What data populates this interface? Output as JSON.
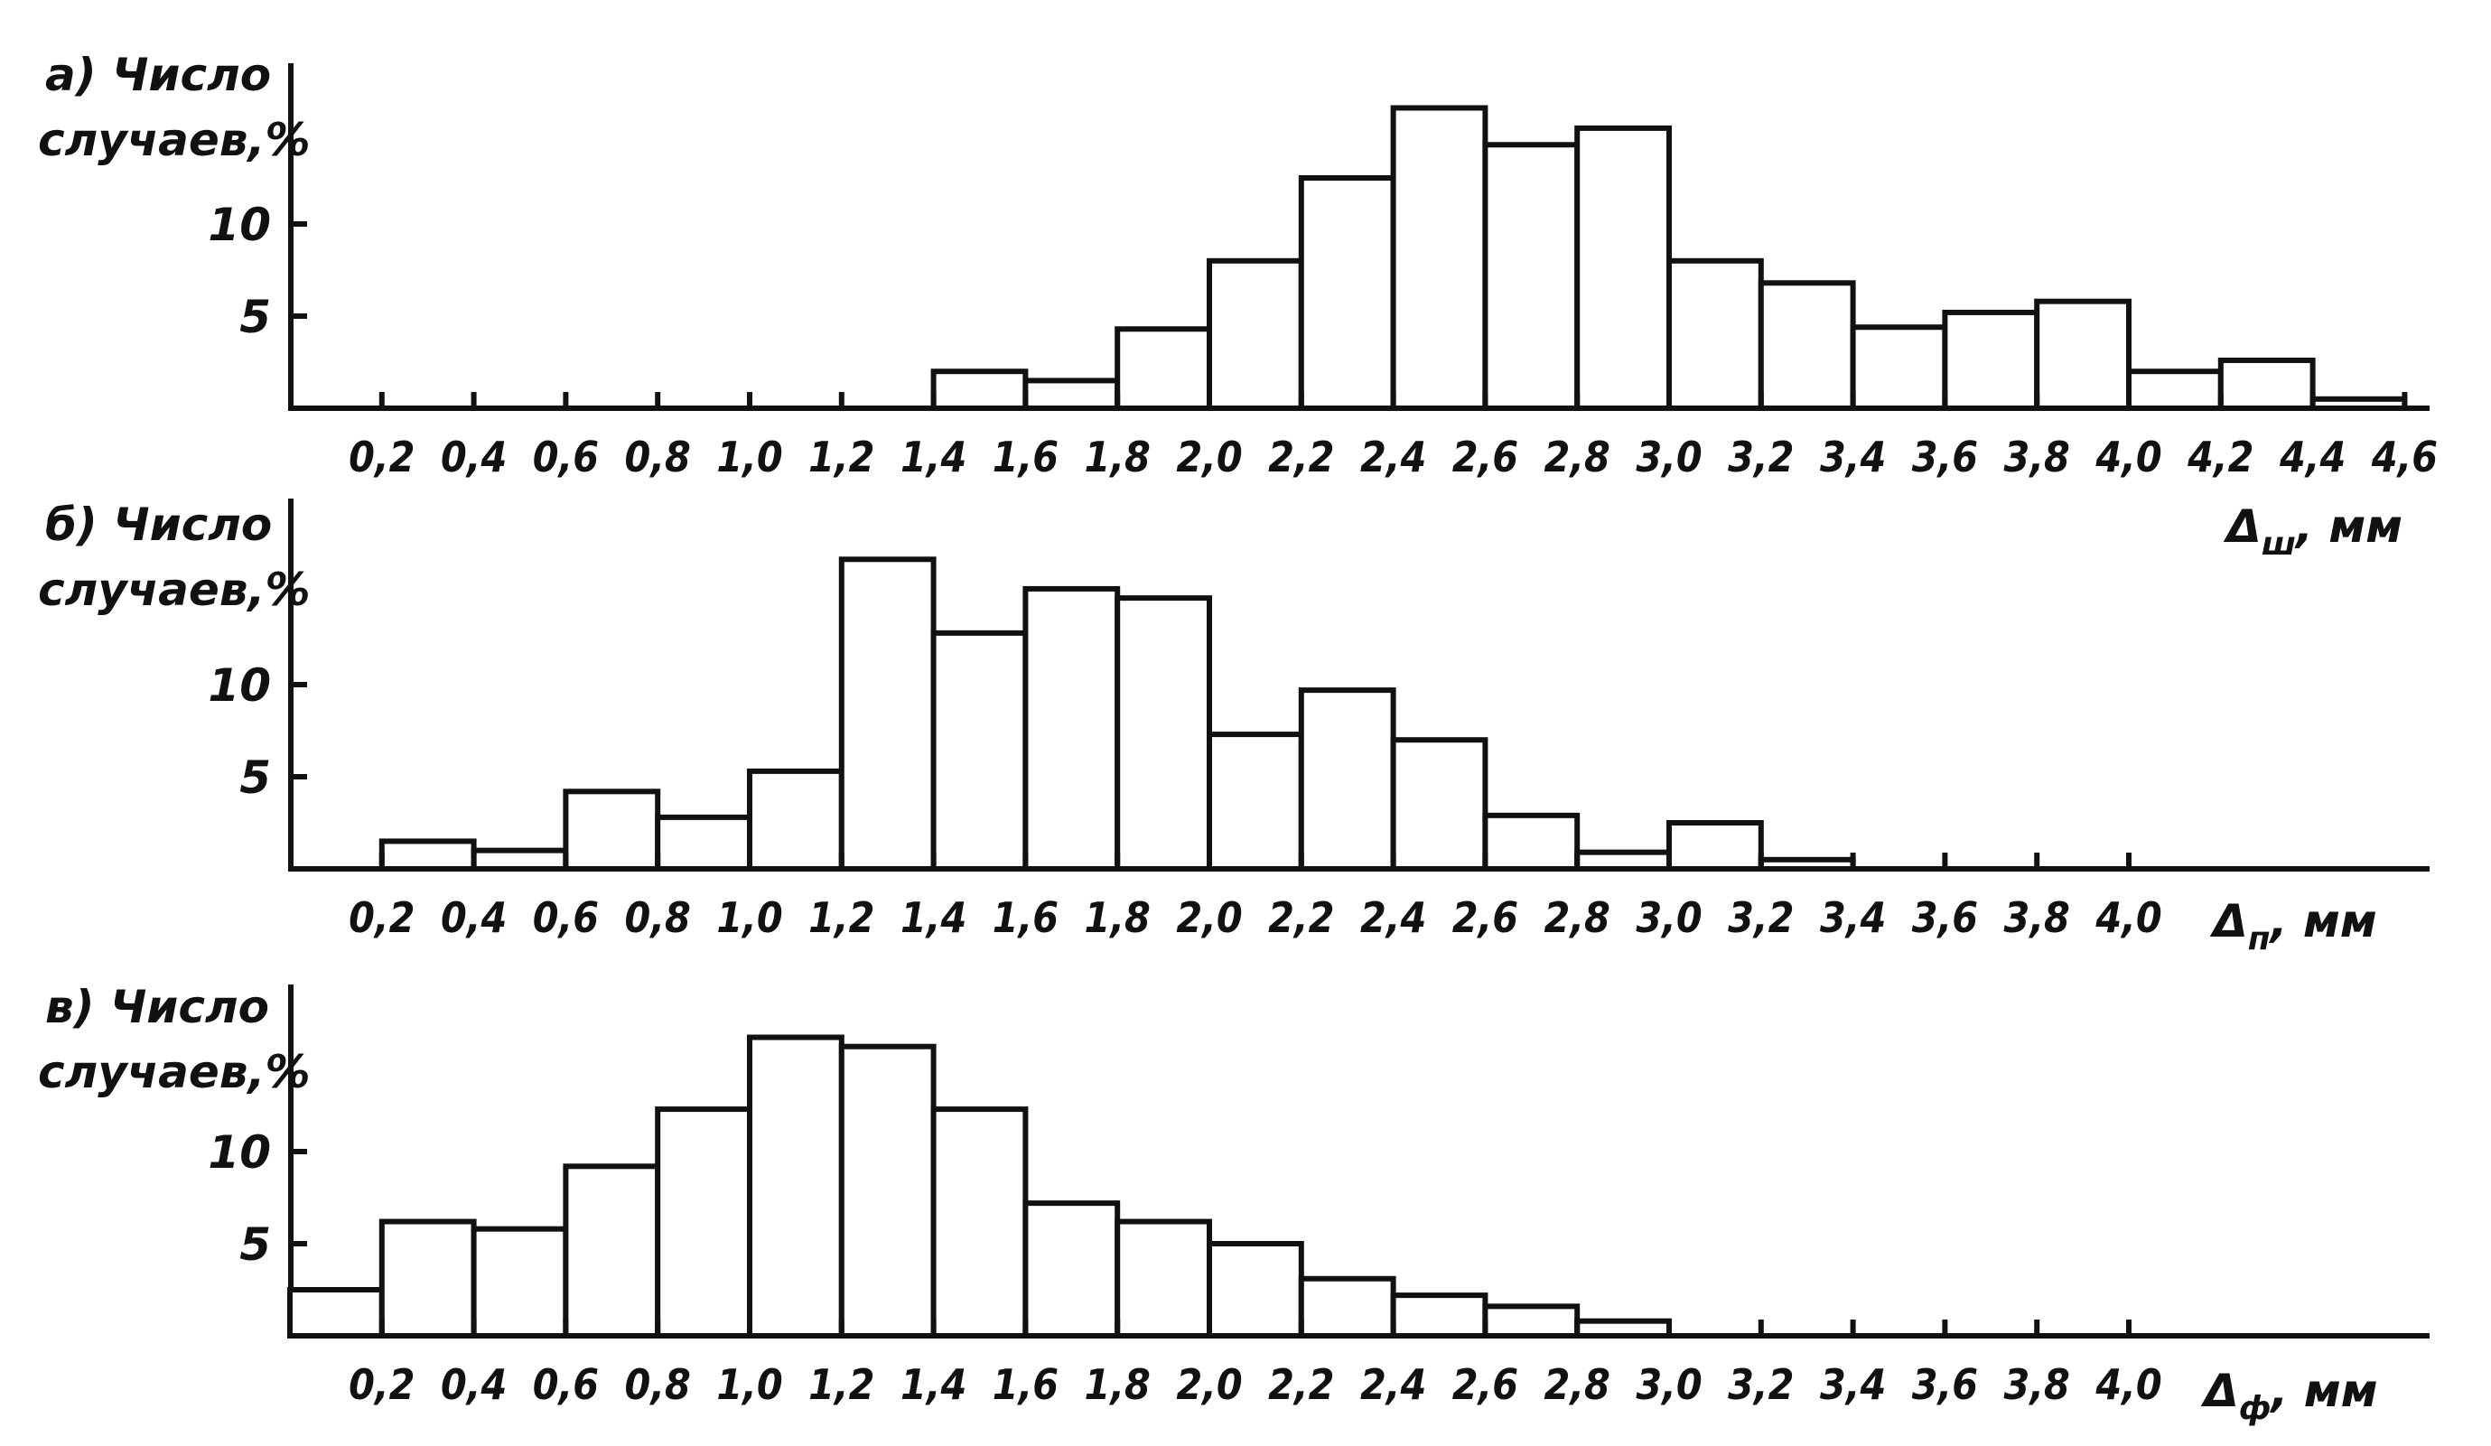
{
  "chart_data": [
    {
      "type": "bar",
      "panel_label": "а)",
      "ylabel_lines": [
        "Число",
        "случаев,%"
      ],
      "xlabel": {
        "symbol": "Δ",
        "subscript": "ш",
        "unit": ", мм"
      },
      "yticks": [
        5,
        10
      ],
      "xticks": [
        "0,2",
        "0,4",
        "0,6",
        "0,8",
        "1,0",
        "1,2",
        "1,4",
        "1,6",
        "1,8",
        "2,0",
        "2,2",
        "2,4",
        "2,6",
        "2,8",
        "3,0",
        "3,2",
        "3,4",
        "3,6",
        "3,8",
        "4,0",
        "4,2",
        "4,4",
        "4,6"
      ],
      "x_range": [
        0.0,
        4.6
      ],
      "y_range": [
        0,
        17
      ],
      "bin_width": 0.2,
      "bins": [
        {
          "x0": 1.4,
          "value": 2
        },
        {
          "x0": 1.6,
          "value": 1.5
        },
        {
          "x0": 1.8,
          "value": 4.3
        },
        {
          "x0": 2.0,
          "value": 8
        },
        {
          "x0": 2.2,
          "value": 12.5
        },
        {
          "x0": 2.4,
          "value": 16.3
        },
        {
          "x0": 2.6,
          "value": 14.3
        },
        {
          "x0": 2.8,
          "value": 15.2
        },
        {
          "x0": 3.0,
          "value": 8
        },
        {
          "x0": 3.2,
          "value": 6.8
        },
        {
          "x0": 3.4,
          "value": 4.4
        },
        {
          "x0": 3.6,
          "value": 5.2
        },
        {
          "x0": 3.8,
          "value": 5.8
        },
        {
          "x0": 4.0,
          "value": 2
        },
        {
          "x0": 4.2,
          "value": 2.6
        },
        {
          "x0": 4.4,
          "value": 0.5
        }
      ]
    },
    {
      "type": "bar",
      "panel_label": "б)",
      "ylabel_lines": [
        "Число",
        "случаев,%"
      ],
      "xlabel": {
        "symbol": "Δ",
        "subscript": "п",
        "unit": ", мм"
      },
      "yticks": [
        5,
        10
      ],
      "xticks": [
        "0,2",
        "0,4",
        "0,6",
        "0,8",
        "1,0",
        "1,2",
        "1,4",
        "1,6",
        "1,8",
        "2,0",
        "2,2",
        "2,4",
        "2,6",
        "2,8",
        "3,0",
        "3,2",
        "3,4",
        "3,6",
        "3,8",
        "4,0"
      ],
      "x_range": [
        0.0,
        4.6
      ],
      "y_range": [
        0,
        17
      ],
      "bin_width": 0.2,
      "bins": [
        {
          "x0": 0.2,
          "value": 1.5
        },
        {
          "x0": 0.4,
          "value": 1
        },
        {
          "x0": 0.6,
          "value": 4.2
        },
        {
          "x0": 0.8,
          "value": 2.8
        },
        {
          "x0": 1.0,
          "value": 5.3
        },
        {
          "x0": 1.2,
          "value": 16.8
        },
        {
          "x0": 1.4,
          "value": 12.8
        },
        {
          "x0": 1.6,
          "value": 15.2
        },
        {
          "x0": 1.8,
          "value": 14.7
        },
        {
          "x0": 2.0,
          "value": 7.3
        },
        {
          "x0": 2.2,
          "value": 9.7
        },
        {
          "x0": 2.4,
          "value": 7
        },
        {
          "x0": 2.6,
          "value": 2.9
        },
        {
          "x0": 2.8,
          "value": 0.9
        },
        {
          "x0": 3.0,
          "value": 2.5
        },
        {
          "x0": 3.2,
          "value": 0.5
        }
      ]
    },
    {
      "type": "bar",
      "panel_label": "в)",
      "ylabel_lines": [
        "Число",
        "случаев,%"
      ],
      "xlabel": {
        "symbol": "Δ",
        "subscript": "ф",
        "unit": ", мм"
      },
      "yticks": [
        5,
        10
      ],
      "xticks": [
        "0,2",
        "0,4",
        "0,6",
        "0,8",
        "1,0",
        "1,2",
        "1,4",
        "1,6",
        "1,8",
        "2,0",
        "2,2",
        "2,4",
        "2,6",
        "2,8",
        "3,0",
        "3,2",
        "3,4",
        "3,6",
        "3,8",
        "4,0"
      ],
      "x_range": [
        0.0,
        4.6
      ],
      "y_range": [
        0,
        17
      ],
      "bin_width": 0.2,
      "bins": [
        {
          "x0": 0.0,
          "value": 2.5
        },
        {
          "x0": 0.2,
          "value": 6.2
        },
        {
          "x0": 0.4,
          "value": 5.8
        },
        {
          "x0": 0.6,
          "value": 9.2
        },
        {
          "x0": 0.8,
          "value": 12.3
        },
        {
          "x0": 1.0,
          "value": 16.2
        },
        {
          "x0": 1.2,
          "value": 15.7
        },
        {
          "x0": 1.4,
          "value": 12.3
        },
        {
          "x0": 1.6,
          "value": 7.2
        },
        {
          "x0": 1.8,
          "value": 6.2
        },
        {
          "x0": 2.0,
          "value": 5
        },
        {
          "x0": 2.2,
          "value": 3.1
        },
        {
          "x0": 2.4,
          "value": 2.2
        },
        {
          "x0": 2.6,
          "value": 1.6
        },
        {
          "x0": 2.8,
          "value": 0.8
        }
      ]
    }
  ]
}
